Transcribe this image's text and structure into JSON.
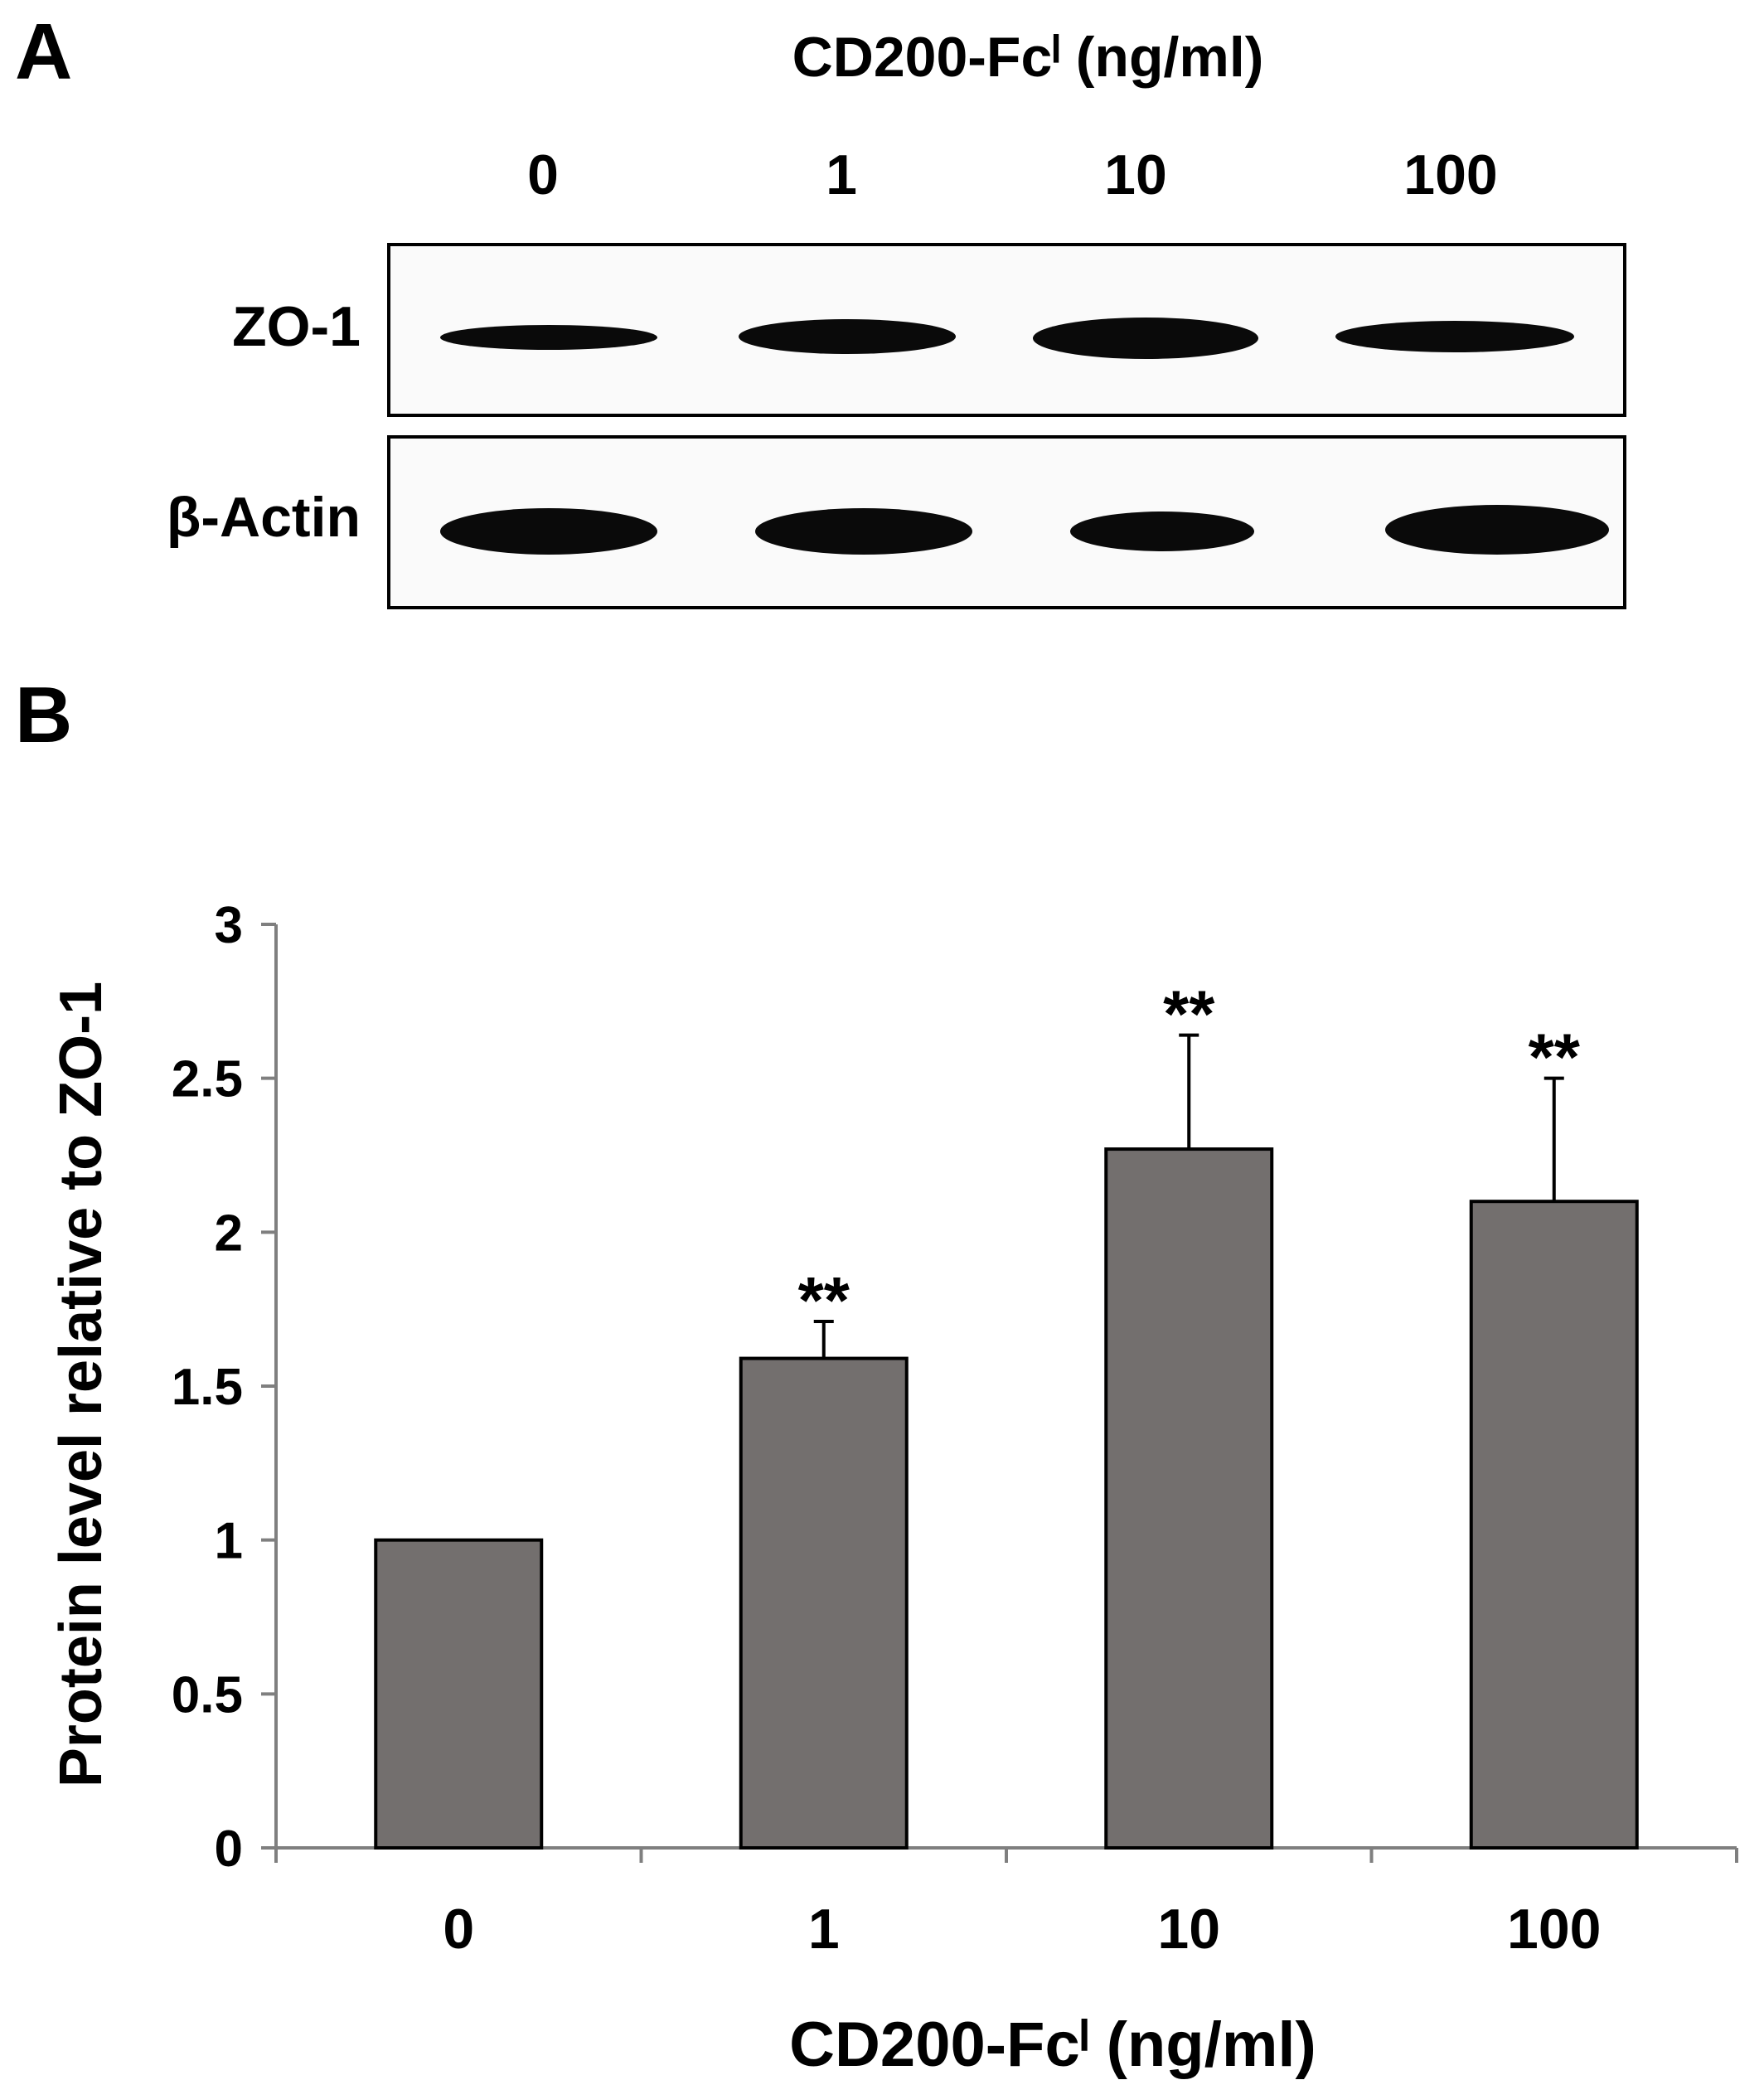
{
  "panel_a": {
    "letter": "A",
    "treatment_label": "CD200-Fcˡ (ng/ml)",
    "lanes": [
      "0",
      "1",
      "10",
      "100"
    ],
    "rows": [
      {
        "label": "ZO-1",
        "band_intensity": [
          0.78,
          0.9,
          1.0,
          0.85
        ]
      },
      {
        "label": "β-Actin",
        "band_intensity": [
          1.0,
          1.0,
          0.85,
          1.0
        ]
      }
    ]
  },
  "panel_b": {
    "letter": "B"
  },
  "chart_data": {
    "type": "bar",
    "categories": [
      "0",
      "1",
      "10",
      "100"
    ],
    "values": [
      1.0,
      1.59,
      2.27,
      2.1
    ],
    "error": [
      0,
      0.12,
      0.37,
      0.4
    ],
    "annotations": [
      "",
      "**",
      "**",
      "**"
    ],
    "xlabel": "CD200-Fcˡ (ng/ml)",
    "ylabel": "Protein level relative to ZO-1",
    "ylim": [
      0,
      3
    ],
    "yticks": [
      "0",
      "0.5",
      "1",
      "1.5",
      "2",
      "2.5",
      "3"
    ],
    "bar_color": "#736f6e",
    "grid": false
  }
}
